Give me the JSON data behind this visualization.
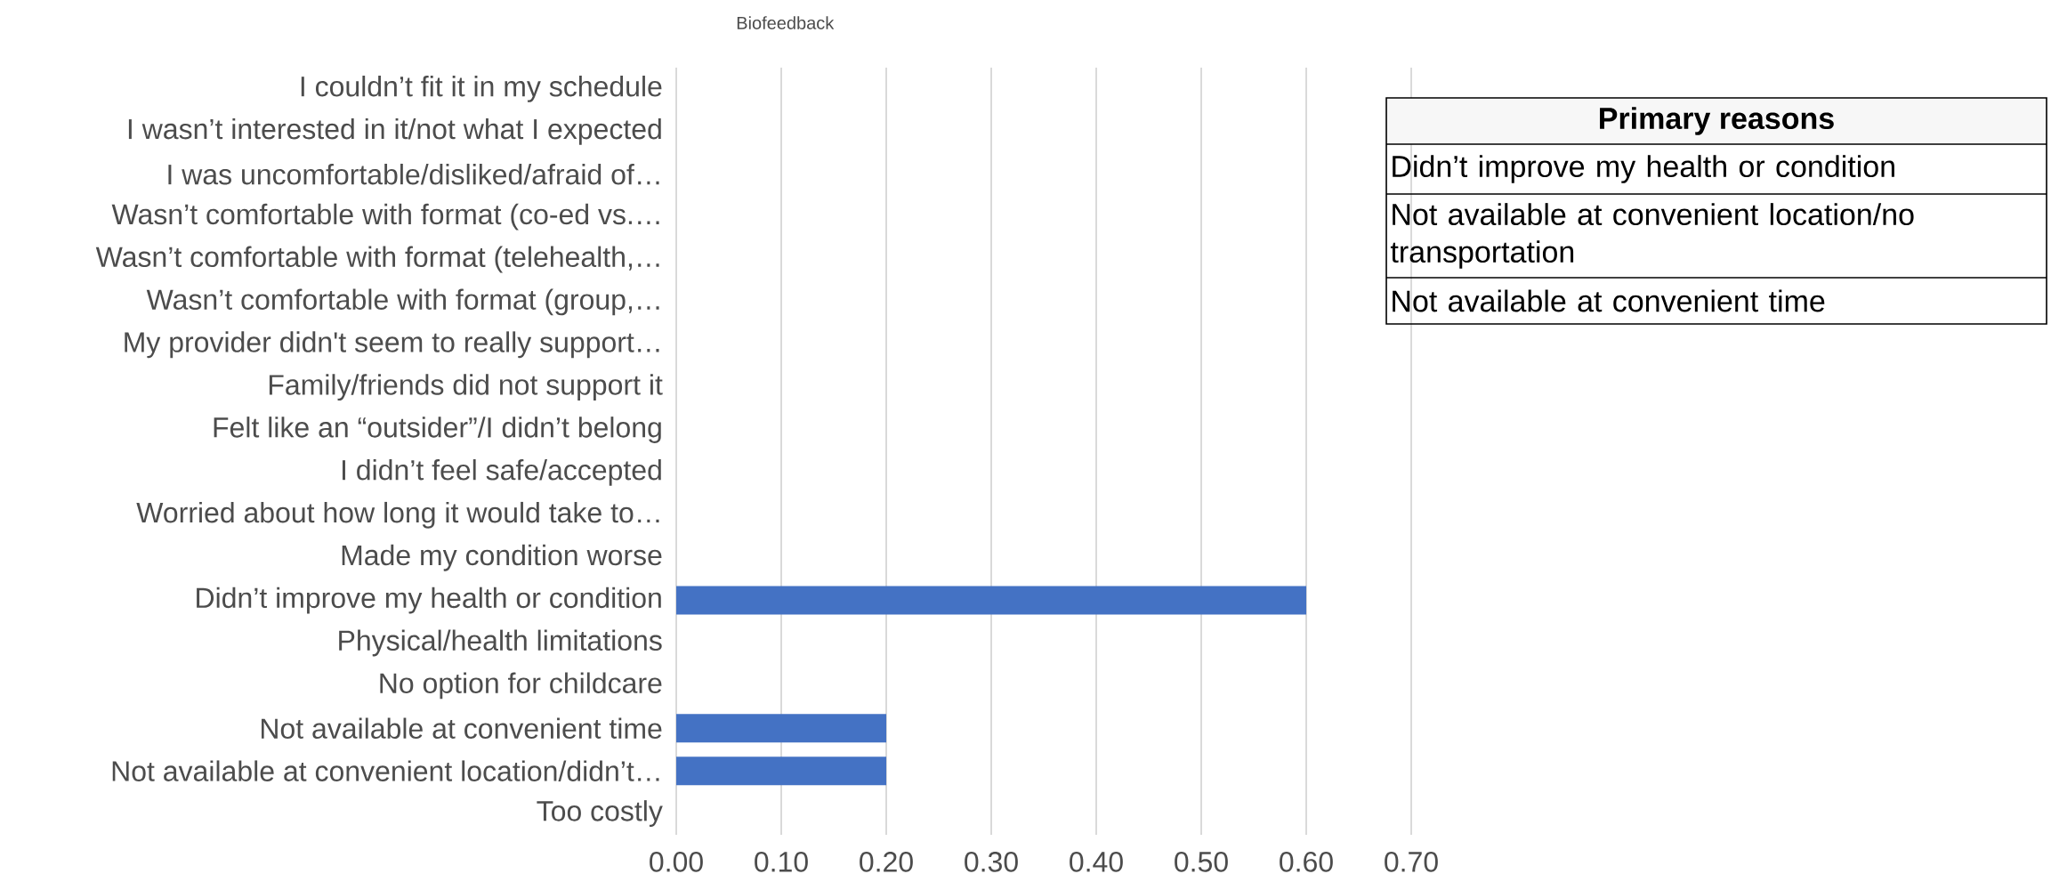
{
  "chart_data": [
    {
      "type": "bar",
      "title": "Biofeedback",
      "orientation": "horizontal",
      "color": "#4472c4",
      "grid": "x",
      "categories": [
        "I couldn’t fit it in my schedule",
        "I wasn’t interested in it/not what I expected",
        "I was uncomfortable/disliked/afraid of…",
        "Wasn’t comfortable with format (co-ed vs.…",
        "Wasn’t comfortable with format (telehealth,…",
        "Wasn’t comfortable with format (group,…",
        "My provider didn't seem to really support…",
        "Family/friends did not support it",
        "Felt like an “outsider”/I didn’t belong",
        "I didn’t feel safe/accepted",
        "Worried about how long it would take to…",
        "Made my condition worse",
        "Didn’t improve my health or condition",
        "Physical/health limitations",
        "No option for childcare",
        "Not available at convenient time",
        "Not available at convenient location/didn’t…",
        "Too costly"
      ],
      "values": [
        0,
        0,
        0,
        0,
        0,
        0,
        0,
        0,
        0,
        0,
        0,
        0,
        0.6,
        0,
        0,
        0.2,
        0.2,
        0
      ],
      "xlim": [
        0,
        0.7
      ],
      "xticks": [
        {
          "value": 0,
          "label": "0.00"
        },
        {
          "value": 0.1,
          "label": "0.10"
        },
        {
          "value": 0.2,
          "label": "0.20"
        },
        {
          "value": 0.3,
          "label": "0.30"
        },
        {
          "value": 0.4,
          "label": "0.40"
        },
        {
          "value": 0.5,
          "label": "0.50"
        },
        {
          "value": 0.6,
          "label": "0.60"
        },
        {
          "value": 0.7,
          "label": "0.70"
        }
      ]
    },
    {
      "type": "other",
      "title": "Primary reasons",
      "annotations": [
        "Didn’t improve my health or condition",
        "Not available at convenient location/no transportation",
        "Not available at convenient time"
      ]
    }
  ]
}
